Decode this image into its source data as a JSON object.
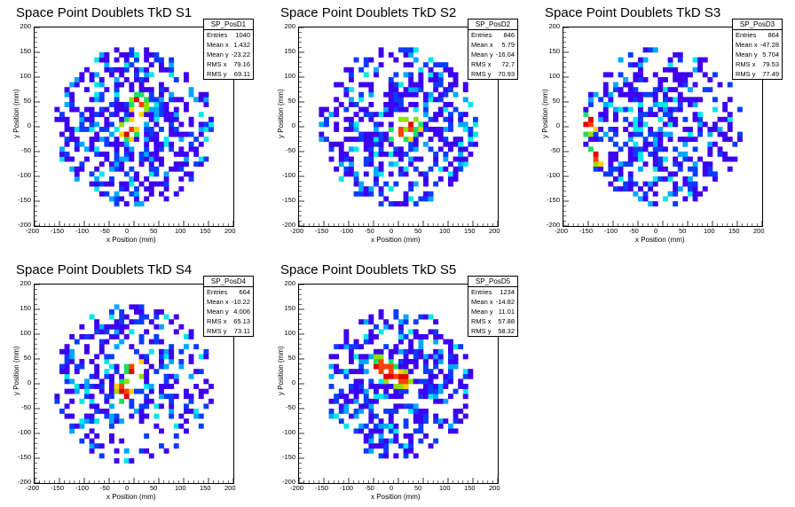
{
  "chart_data": [
    {
      "type": "heatmap",
      "title": "Space Point Doublets TkD S1",
      "xlabel": "x Position (mm)",
      "ylabel": "y Position (mm)",
      "xlim": [
        -200,
        200
      ],
      "ylim": [
        -200,
        200
      ],
      "xticks": [
        "-200",
        "-150",
        "-100",
        "-50",
        "0",
        "50",
        "100",
        "150",
        "200"
      ],
      "yticks": [
        "-200",
        "-150",
        "-100",
        "-50",
        "0",
        "50",
        "100",
        "150",
        "200"
      ],
      "stats": {
        "name": "SP_PosD1",
        "rows": [
          {
            "label": "Entries",
            "value": "1040"
          },
          {
            "label": "Mean x",
            "value": "1.432"
          },
          {
            "label": "Mean y",
            "value": "-23.22"
          },
          {
            "label": "RMS x",
            "value": "79.16"
          },
          {
            "label": "RMS y",
            "value": "69.11"
          }
        ]
      },
      "distribution": {
        "mean_x": 1.432,
        "mean_y": -23.22,
        "rms_x": 79.16,
        "rms_y": 69.11,
        "radius": 160,
        "occupancy": 0.62,
        "hotspots": [
          {
            "x": 10,
            "y": 45
          },
          {
            "x": -10,
            "y": -5
          }
        ]
      }
    },
    {
      "type": "heatmap",
      "title": "Space Point Doublets TkD S2",
      "xlabel": "x Position (mm)",
      "ylabel": "y Position (mm)",
      "xlim": [
        -200,
        200
      ],
      "ylim": [
        -200,
        200
      ],
      "xticks": [
        "-200",
        "-150",
        "-100",
        "-50",
        "0",
        "50",
        "100",
        "150",
        "200"
      ],
      "yticks": [
        "-200",
        "-150",
        "-100",
        "-50",
        "0",
        "50",
        "100",
        "150",
        "200"
      ],
      "stats": {
        "name": "SP_PosD2",
        "rows": [
          {
            "label": "Entries",
            "value": "846"
          },
          {
            "label": "Mean x",
            "value": "5.79"
          },
          {
            "label": "Mean y",
            "value": "-16.04"
          },
          {
            "label": "RMS x",
            "value": "72.7"
          },
          {
            "label": "RMS y",
            "value": "70.93"
          }
        ]
      },
      "distribution": {
        "mean_x": 5.79,
        "mean_y": -16.04,
        "rms_x": 72.7,
        "rms_y": 70.93,
        "radius": 160,
        "occupancy": 0.55,
        "hotspots": [
          {
            "x": 5,
            "y": -15
          },
          {
            "x": 25,
            "y": 5
          }
        ]
      }
    },
    {
      "type": "heatmap",
      "title": "Space Point Doublets TkD S3",
      "xlabel": "x Position (mm)",
      "ylabel": "y Position (mm)",
      "xlim": [
        -200,
        200
      ],
      "ylim": [
        -200,
        200
      ],
      "xticks": [
        "-200",
        "-150",
        "-100",
        "-50",
        "0",
        "50",
        "100",
        "150",
        "200"
      ],
      "yticks": [
        "-200",
        "-150",
        "-100",
        "-50",
        "0",
        "50",
        "100",
        "150",
        "200"
      ],
      "stats": {
        "name": "SP_PosD3",
        "rows": [
          {
            "label": "Entries",
            "value": "864"
          },
          {
            "label": "Mean x",
            "value": "-47.28"
          },
          {
            "label": "Mean y",
            "value": "5.704"
          },
          {
            "label": "RMS x",
            "value": "79.53"
          },
          {
            "label": "RMS y",
            "value": "77.49"
          }
        ]
      },
      "distribution": {
        "mean_x": -47.28,
        "mean_y": 5.704,
        "rms_x": 79.53,
        "rms_y": 77.49,
        "radius": 160,
        "occupancy": 0.55,
        "hotspots": [
          {
            "x": -150,
            "y": 5
          },
          {
            "x": -130,
            "y": -55
          }
        ]
      }
    },
    {
      "type": "heatmap",
      "title": "Space Point Doublets TkD S4",
      "xlabel": "x Position (mm)",
      "ylabel": "y Position (mm)",
      "xlim": [
        -200,
        200
      ],
      "ylim": [
        -200,
        200
      ],
      "xticks": [
        "-200",
        "-150",
        "-100",
        "-50",
        "0",
        "50",
        "100",
        "150",
        "200"
      ],
      "yticks": [
        "-200",
        "-150",
        "-100",
        "-50",
        "0",
        "50",
        "100",
        "150",
        "200"
      ],
      "stats": {
        "name": "SP_PosD4",
        "rows": [
          {
            "label": "Entries",
            "value": "664"
          },
          {
            "label": "Mean x",
            "value": "-10.22"
          },
          {
            "label": "Mean y",
            "value": "4.006"
          },
          {
            "label": "RMS x",
            "value": "65.13"
          },
          {
            "label": "RMS y",
            "value": "73.11"
          }
        ]
      },
      "distribution": {
        "mean_x": -10.22,
        "mean_y": 4.006,
        "rms_x": 65.13,
        "rms_y": 73.11,
        "radius": 160,
        "occupancy": 0.45,
        "hotspots": [
          {
            "x": 0,
            "y": 30
          },
          {
            "x": -20,
            "y": -15
          }
        ]
      }
    },
    {
      "type": "heatmap",
      "title": "Space Point Doublets TkD S5",
      "xlabel": "x Position (mm)",
      "ylabel": "y Position (mm)",
      "xlim": [
        -200,
        200
      ],
      "ylim": [
        -200,
        200
      ],
      "xticks": [
        "-200",
        "-150",
        "-100",
        "-50",
        "0",
        "50",
        "100",
        "150",
        "200"
      ],
      "yticks": [
        "-200",
        "-150",
        "-100",
        "-50",
        "0",
        "50",
        "100",
        "150",
        "200"
      ],
      "stats": {
        "name": "SP_PosD5",
        "rows": [
          {
            "label": "Entries",
            "value": "1234"
          },
          {
            "label": "Mean x",
            "value": "-14.82"
          },
          {
            "label": "Mean y",
            "value": "11.01"
          },
          {
            "label": "RMS x",
            "value": "57.88"
          },
          {
            "label": "RMS y",
            "value": "58.32"
          }
        ]
      },
      "distribution": {
        "mean_x": -14.82,
        "mean_y": 11.01,
        "rms_x": 57.88,
        "rms_y": 58.32,
        "radius": 150,
        "occupancy": 0.6,
        "hotspots": [
          {
            "x": -35,
            "y": 35
          },
          {
            "x": -20,
            "y": 25
          },
          {
            "x": 5,
            "y": 10
          }
        ]
      }
    }
  ],
  "palette": [
    "#3d00f0",
    "#0a3cff",
    "#00a8ff",
    "#00e8e8",
    "#18e060",
    "#90e000",
    "#ffd000",
    "#ff4000",
    "#e00000"
  ]
}
